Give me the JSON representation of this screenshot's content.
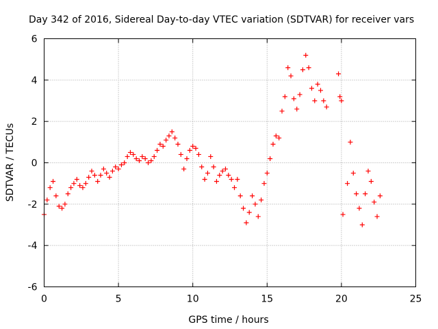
{
  "chart_data": {
    "type": "scatter",
    "title": "Day 342 of 2016, Sidereal Day-to-day VTEC variation (SDTVAR) for receiver vars",
    "xlabel": "GPS time / hours",
    "ylabel": "SDTVAR / TECUs",
    "xlim": [
      0,
      25
    ],
    "ylim": [
      -6,
      6
    ],
    "xticks": [
      0,
      5,
      10,
      15,
      20,
      25
    ],
    "yticks": [
      -6,
      -4,
      -2,
      0,
      2,
      4,
      6
    ],
    "grid": true,
    "marker": "+",
    "color": "#ff0000",
    "series": [
      {
        "name": "SDTVAR",
        "x": [
          0.0,
          0.2,
          0.4,
          0.6,
          0.8,
          1.0,
          1.2,
          1.4,
          1.6,
          1.8,
          2.0,
          2.2,
          2.4,
          2.6,
          2.8,
          3.0,
          3.2,
          3.4,
          3.6,
          3.8,
          4.0,
          4.2,
          4.4,
          4.6,
          4.8,
          5.0,
          5.2,
          5.4,
          5.6,
          5.8,
          6.0,
          6.2,
          6.4,
          6.6,
          6.8,
          7.0,
          7.2,
          7.4,
          7.6,
          7.8,
          8.0,
          8.2,
          8.4,
          8.6,
          8.8,
          9.0,
          9.2,
          9.4,
          9.6,
          9.8,
          10.0,
          10.2,
          10.4,
          10.6,
          10.8,
          11.0,
          11.2,
          11.4,
          11.6,
          11.8,
          12.0,
          12.2,
          12.4,
          12.6,
          12.8,
          13.0,
          13.2,
          13.4,
          13.6,
          13.8,
          14.0,
          14.2,
          14.4,
          14.6,
          14.8,
          15.0,
          15.2,
          15.4,
          15.6,
          15.8,
          16.0,
          16.2,
          16.4,
          16.6,
          16.8,
          17.0,
          17.2,
          17.4,
          17.6,
          17.8,
          18.0,
          18.2,
          18.4,
          18.6,
          18.8,
          19.0,
          19.8,
          19.9,
          20.0,
          20.1,
          20.4,
          20.6,
          20.8,
          21.0,
          21.2,
          21.4,
          21.6,
          21.8,
          22.0,
          22.2,
          22.4,
          22.6
        ],
        "y": [
          -2.5,
          -1.8,
          -1.2,
          -0.9,
          -1.6,
          -2.1,
          -2.2,
          -2.0,
          -1.5,
          -1.2,
          -1.0,
          -0.8,
          -1.1,
          -1.2,
          -1.0,
          -0.7,
          -0.4,
          -0.6,
          -0.9,
          -0.6,
          -0.3,
          -0.5,
          -0.7,
          -0.4,
          -0.2,
          -0.3,
          -0.1,
          0.0,
          0.3,
          0.5,
          0.4,
          0.2,
          0.1,
          0.3,
          0.2,
          0.0,
          0.1,
          0.3,
          0.6,
          0.9,
          0.8,
          1.1,
          1.3,
          1.5,
          1.2,
          0.9,
          0.4,
          -0.3,
          0.2,
          0.6,
          0.8,
          0.7,
          0.4,
          -0.2,
          -0.8,
          -0.5,
          0.3,
          -0.2,
          -0.9,
          -0.6,
          -0.4,
          -0.3,
          -0.6,
          -0.8,
          -1.2,
          -0.8,
          -1.6,
          -2.2,
          -2.9,
          -2.4,
          -1.6,
          -2.0,
          -2.6,
          -1.8,
          -1.0,
          -0.5,
          0.2,
          0.9,
          1.3,
          1.2,
          2.5,
          3.2,
          4.6,
          4.2,
          3.1,
          2.6,
          3.3,
          4.5,
          5.2,
          4.6,
          3.6,
          3.0,
          3.8,
          3.5,
          3.0,
          2.7,
          4.3,
          3.2,
          3.0,
          -2.5,
          -1.0,
          1.0,
          -0.5,
          -1.5,
          -2.2,
          -3.0,
          -1.5,
          -0.4,
          -0.9,
          -1.9,
          -2.6,
          -1.6
        ]
      }
    ]
  }
}
